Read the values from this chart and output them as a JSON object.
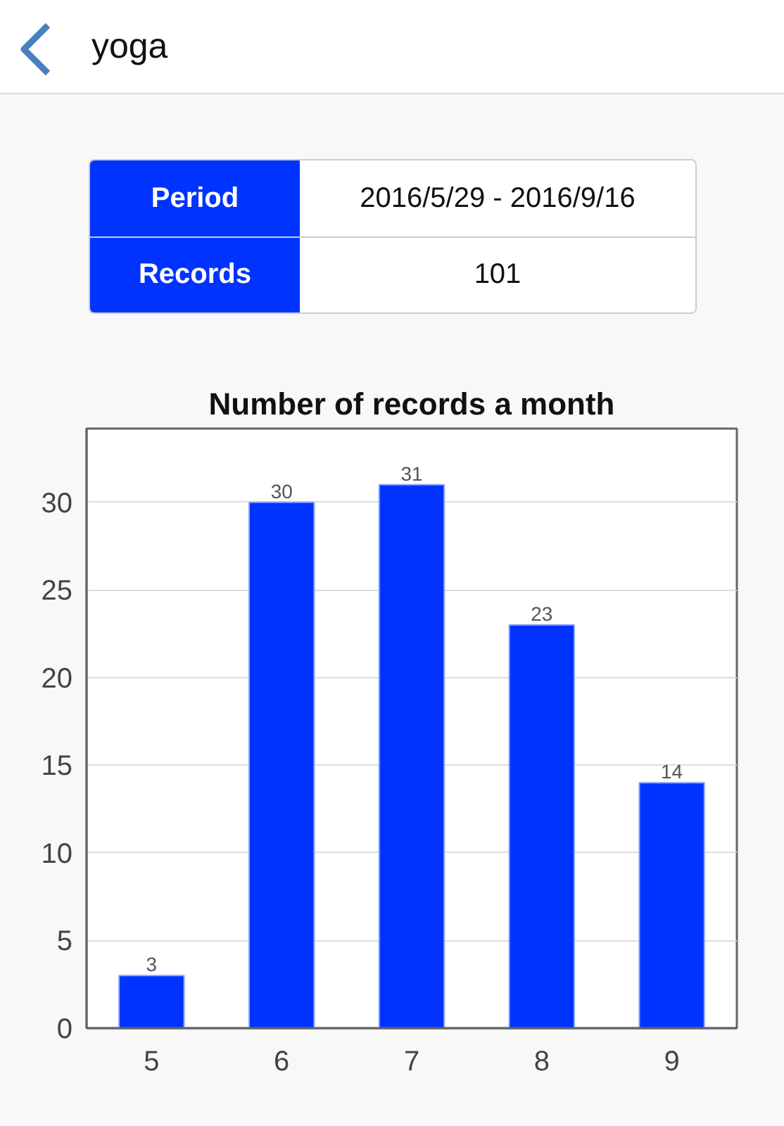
{
  "chart_data": {
    "type": "bar",
    "title": "Number of records a month",
    "categories": [
      "5",
      "6",
      "7",
      "8",
      "9"
    ],
    "values": [
      3,
      30,
      31,
      23,
      14
    ],
    "color": "#0033ff",
    "ylim": [
      0,
      34.2
    ],
    "yticks": [
      0,
      5,
      10,
      15,
      20,
      25,
      30
    ],
    "grid": "y",
    "data_labels": true,
    "annotations": [
      "yoga",
      "Period",
      "2016/5/29 - 2016/9/16",
      "Records",
      "101"
    ]
  }
}
